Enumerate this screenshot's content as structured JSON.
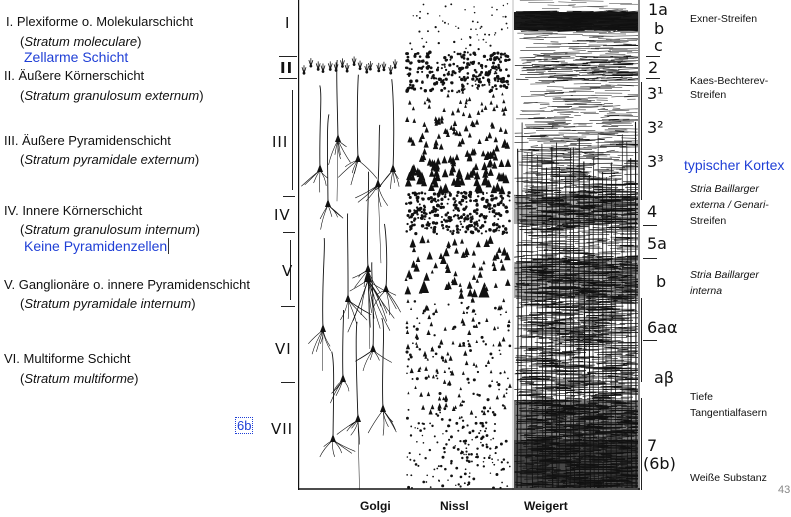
{
  "layers": [
    {
      "name": "I.  Plexiforme o. Molekularschicht",
      "latin": "Stratum moleculare",
      "roman": "I"
    },
    {
      "name": "II. Äußere Körnerschicht",
      "latin": "Stratum granulosum externum",
      "roman": "II"
    },
    {
      "name": "III. Äußere Pyramidenschicht",
      "latin": "Stratum pyramidale externum",
      "roman": "III"
    },
    {
      "name": "IV. Innere Körnerschicht",
      "latin": "Stratum granulosum internum",
      "roman": "IV"
    },
    {
      "name": "V. Ganglionäre o. innere Pyramidenschicht",
      "latin": "Stratum pyramidale internum",
      "roman": "V"
    },
    {
      "name": "VI. Multiforme Schicht",
      "latin": "Stratum multiforme",
      "roman": "VI"
    }
  ],
  "extra_roman": "VII",
  "annotations": {
    "zellarme": "Zellarme Schicht",
    "keine": "Keine Pyramidenzellen",
    "sixb": "6b",
    "typisch": "typischer Kortex"
  },
  "sublayers": [
    "1a",
    "b",
    "c",
    "2",
    "3¹",
    "3²",
    "3³",
    "4",
    "5a",
    "b",
    "6aα",
    "aβ",
    "7",
    "(6b)"
  ],
  "right_labels": {
    "exner": "Exner-Streifen",
    "kaes": "Kaes-Bechterev-Streifen",
    "baill_ext1": "Stria Baillarger",
    "baill_ext2": "externa / Genari-",
    "baill_ext3": "Streifen",
    "baill_int1": "Stria Baillarger",
    "baill_int2": "interna",
    "tief1": "Tiefe",
    "tief2": "Tangentialfasern",
    "weisse": "Weiße Substanz"
  },
  "column_headers": [
    "Golgi",
    "Nissl",
    "Weigert"
  ],
  "page_number": "43"
}
